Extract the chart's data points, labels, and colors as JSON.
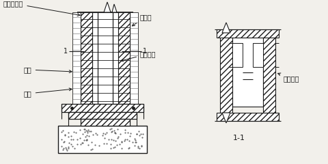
{
  "bg_color": "#f2f0eb",
  "line_color": "#1a1a1a",
  "labels": {
    "hunningtu": "混凝土壁柱",
    "zhuangqiang": "砖墙",
    "zhujin": "箍筋",
    "lajiejin": "拉结筋",
    "zongxiang": "纵向钢筋",
    "lajie_fug": "拉结腹杆",
    "section": "1-1",
    "mark1": "1",
    "mark2": "1"
  },
  "fig_width": 4.81,
  "fig_height": 2.4,
  "dpi": 100
}
